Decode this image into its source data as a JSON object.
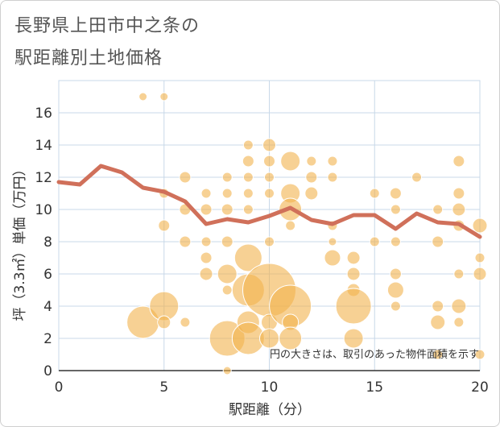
{
  "header": {
    "title_line1": "長野県上田市中之条の",
    "title_line2": "駅距離別土地価格"
  },
  "colors": {
    "bubble": "#F2B24C",
    "line": "#D0705A",
    "grid": "#c8d8e8",
    "plot_bg": "#ffffff"
  },
  "chart_data": {
    "type": "scatter",
    "title": "長野県上田市中之条の駅距離別土地価格",
    "xlabel": "駅距離（分）",
    "ylabel": "坪（3.3㎡）単価（万円）",
    "xlim": [
      0,
      20
    ],
    "ylim": [
      0,
      18
    ],
    "xticks": [
      0,
      5,
      10,
      15,
      20
    ],
    "yticks": [
      0,
      2,
      4,
      6,
      8,
      10,
      12,
      14,
      16
    ],
    "note": "円の大きさは、取引のあった物件面積を示す",
    "grid": true,
    "bubbles": [
      {
        "x": 4,
        "y": 17,
        "r": 5
      },
      {
        "x": 5,
        "y": 17,
        "r": 5
      },
      {
        "x": 4,
        "y": 3,
        "r": 20
      },
      {
        "x": 5,
        "y": 4,
        "r": 18
      },
      {
        "x": 5,
        "y": 3,
        "r": 8
      },
      {
        "x": 5,
        "y": 9,
        "r": 7
      },
      {
        "x": 5,
        "y": 11,
        "r": 6
      },
      {
        "x": 6,
        "y": 12,
        "r": 7
      },
      {
        "x": 6,
        "y": 10,
        "r": 7
      },
      {
        "x": 6,
        "y": 8,
        "r": 7
      },
      {
        "x": 6,
        "y": 3,
        "r": 6
      },
      {
        "x": 7,
        "y": 11,
        "r": 6
      },
      {
        "x": 7,
        "y": 10,
        "r": 7
      },
      {
        "x": 7,
        "y": 8,
        "r": 6
      },
      {
        "x": 7,
        "y": 7,
        "r": 7
      },
      {
        "x": 7,
        "y": 6,
        "r": 8
      },
      {
        "x": 8,
        "y": 12,
        "r": 6
      },
      {
        "x": 8,
        "y": 11,
        "r": 6
      },
      {
        "x": 8,
        "y": 10,
        "r": 7
      },
      {
        "x": 8,
        "y": 8,
        "r": 7
      },
      {
        "x": 8,
        "y": 6,
        "r": 12
      },
      {
        "x": 8,
        "y": 5,
        "r": 6
      },
      {
        "x": 8,
        "y": 2,
        "r": 22
      },
      {
        "x": 8,
        "y": 0,
        "r": 5
      },
      {
        "x": 9,
        "y": 14,
        "r": 6
      },
      {
        "x": 9,
        "y": 13,
        "r": 7
      },
      {
        "x": 9,
        "y": 12,
        "r": 6
      },
      {
        "x": 9,
        "y": 11,
        "r": 6
      },
      {
        "x": 9,
        "y": 10,
        "r": 6
      },
      {
        "x": 9,
        "y": 7,
        "r": 17
      },
      {
        "x": 9,
        "y": 5,
        "r": 20
      },
      {
        "x": 9,
        "y": 3,
        "r": 14
      },
      {
        "x": 9,
        "y": 2,
        "r": 20
      },
      {
        "x": 10,
        "y": 14,
        "r": 8
      },
      {
        "x": 10,
        "y": 13,
        "r": 7
      },
      {
        "x": 10,
        "y": 12,
        "r": 6
      },
      {
        "x": 10,
        "y": 11,
        "r": 6
      },
      {
        "x": 10,
        "y": 8,
        "r": 6
      },
      {
        "x": 10,
        "y": 5,
        "r": 33
      },
      {
        "x": 10,
        "y": 3,
        "r": 10
      },
      {
        "x": 10,
        "y": 2,
        "r": 12
      },
      {
        "x": 11,
        "y": 13,
        "r": 12
      },
      {
        "x": 11,
        "y": 11,
        "r": 12
      },
      {
        "x": 11,
        "y": 10,
        "r": 14
      },
      {
        "x": 11,
        "y": 9,
        "r": 6
      },
      {
        "x": 11,
        "y": 4,
        "r": 26
      },
      {
        "x": 11,
        "y": 3,
        "r": 10
      },
      {
        "x": 11,
        "y": 2,
        "r": 14
      },
      {
        "x": 12,
        "y": 13,
        "r": 6
      },
      {
        "x": 12,
        "y": 12,
        "r": 7
      },
      {
        "x": 12,
        "y": 11,
        "r": 8
      },
      {
        "x": 13,
        "y": 13,
        "r": 6
      },
      {
        "x": 13,
        "y": 12,
        "r": 6
      },
      {
        "x": 13,
        "y": 9,
        "r": 6
      },
      {
        "x": 13,
        "y": 8,
        "r": 5
      },
      {
        "x": 13,
        "y": 7,
        "r": 10
      },
      {
        "x": 14,
        "y": 7,
        "r": 8
      },
      {
        "x": 14,
        "y": 6,
        "r": 8
      },
      {
        "x": 14,
        "y": 5,
        "r": 8
      },
      {
        "x": 14,
        "y": 4,
        "r": 22
      },
      {
        "x": 14,
        "y": 2,
        "r": 12
      },
      {
        "x": 15,
        "y": 11,
        "r": 6
      },
      {
        "x": 15,
        "y": 8,
        "r": 6
      },
      {
        "x": 16,
        "y": 11,
        "r": 7
      },
      {
        "x": 16,
        "y": 10,
        "r": 6
      },
      {
        "x": 16,
        "y": 8,
        "r": 6
      },
      {
        "x": 16,
        "y": 6,
        "r": 7
      },
      {
        "x": 16,
        "y": 5,
        "r": 10
      },
      {
        "x": 16,
        "y": 4,
        "r": 6
      },
      {
        "x": 17,
        "y": 12,
        "r": 6
      },
      {
        "x": 18,
        "y": 10,
        "r": 6
      },
      {
        "x": 18,
        "y": 8,
        "r": 7
      },
      {
        "x": 18,
        "y": 4,
        "r": 7
      },
      {
        "x": 18,
        "y": 3,
        "r": 9
      },
      {
        "x": 18,
        "y": 1,
        "r": 6
      },
      {
        "x": 19,
        "y": 13,
        "r": 7
      },
      {
        "x": 19,
        "y": 11,
        "r": 7
      },
      {
        "x": 19,
        "y": 10,
        "r": 8
      },
      {
        "x": 19,
        "y": 9,
        "r": 7
      },
      {
        "x": 19,
        "y": 6,
        "r": 6
      },
      {
        "x": 19,
        "y": 4,
        "r": 9
      },
      {
        "x": 19,
        "y": 3,
        "r": 6
      },
      {
        "x": 20,
        "y": 9,
        "r": 9
      },
      {
        "x": 20,
        "y": 7,
        "r": 6
      },
      {
        "x": 20,
        "y": 6,
        "r": 8
      },
      {
        "x": 20,
        "y": 1,
        "r": 6
      }
    ],
    "series": [
      {
        "type": "line",
        "x": [
          0,
          1,
          2,
          3,
          4,
          5,
          6,
          7,
          8,
          9,
          10,
          11,
          12,
          13,
          14,
          15,
          16,
          17,
          18,
          19,
          20
        ],
        "values": [
          11.7,
          11.55,
          12.7,
          12.3,
          11.35,
          11.1,
          10.5,
          9.1,
          9.4,
          9.2,
          9.6,
          10.1,
          9.35,
          9.1,
          9.65,
          9.65,
          8.8,
          9.75,
          9.2,
          9.1,
          8.3
        ]
      }
    ]
  }
}
